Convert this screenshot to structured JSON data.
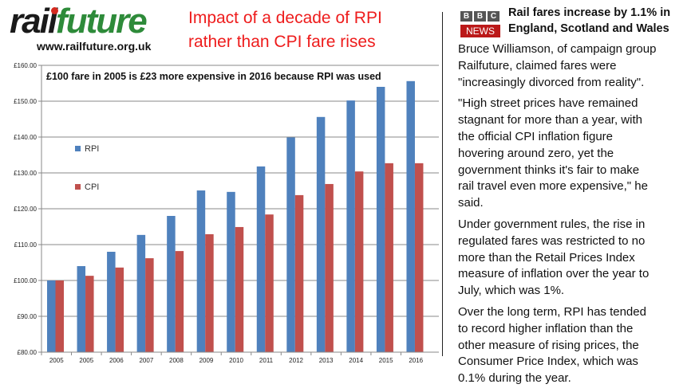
{
  "logo": {
    "part1": "rail",
    "part2": "future",
    "url": "www.railfuture.org.uk"
  },
  "title": {
    "line1": "Impact of a decade of RPI",
    "line2": "rather than CPI fare rises"
  },
  "chart_data": {
    "type": "bar",
    "annotation": "£100  fare in 2005  is £23  more expensive in 2016  because RPI was used",
    "categories": [
      "2005",
      "2005",
      "2006",
      "2007",
      "2008",
      "2009",
      "2010",
      "2011",
      "2012",
      "2013",
      "2014",
      "2015",
      "2016"
    ],
    "series": [
      {
        "name": "RPI",
        "color": "#4f81bd",
        "values": [
          100,
          104,
          108,
          112.7,
          118,
          125.1,
          124.7,
          131.8,
          139.9,
          145.6,
          150.2,
          154,
          155.6
        ]
      },
      {
        "name": "CPI",
        "color": "#c0504d",
        "values": [
          100,
          101.3,
          103.6,
          106.2,
          108.2,
          112.9,
          114.9,
          118.4,
          123.8,
          126.9,
          130.4,
          132.7,
          132.7
        ]
      }
    ],
    "ylim": [
      80,
      160
    ],
    "yticks": [
      "£80.00",
      "£90.00",
      "£100.00",
      "£110.00",
      "£120.00",
      "£130.00",
      "£140.00",
      "£150.00",
      "£160.00"
    ],
    "grid": true,
    "legend": "left-inside"
  },
  "news": {
    "brand": [
      "B",
      "B",
      "C"
    ],
    "brand_sub": "NEWS",
    "headline": [
      "Rail fares increase by 1.1% in",
      "England, Scotland and Wales"
    ],
    "paragraphs": [
      [
        "Bruce Williamson, of campaign group",
        "Railfuture, claimed fares were",
        "\"increasingly divorced from reality\"."
      ],
      [
        "\"High street prices have remained",
        "stagnant for more than a year, with",
        "the official CPI inflation figure",
        "hovering around zero, yet the",
        "government thinks it's fair to make",
        "rail travel even more expensive,\" he",
        "said."
      ],
      [
        "Under government rules, the rise in",
        "regulated fares was restricted to no",
        "more than the Retail Prices Index",
        "measure of inflation over the year to",
        "July, which was 1%."
      ],
      [
        "Over the long term, RPI has tended",
        "to record higher inflation than the",
        "other measure of rising prices, the",
        "Consumer Price Index, which was",
        "0.1% during the year."
      ]
    ]
  }
}
